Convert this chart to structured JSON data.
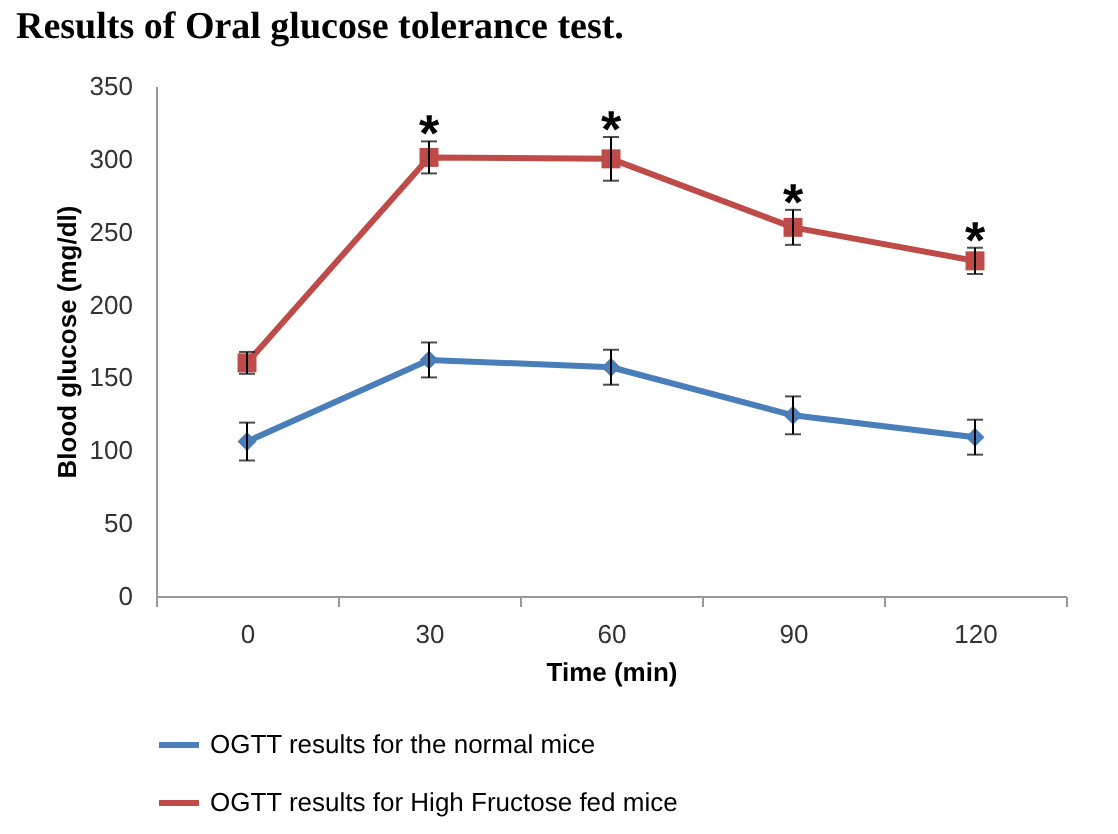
{
  "chart_data": {
    "type": "line",
    "title": "Results of Oral glucose tolerance test.",
    "xlabel": "Time (min)",
    "ylabel": "Blood glucose (mg/dl)",
    "categories": [
      "0",
      "30",
      "60",
      "90",
      "120"
    ],
    "series": [
      {
        "name": "OGTT results for the normal mice",
        "color": "#4a7ebb",
        "marker": "diamond",
        "values": [
          106,
          162,
          157,
          124,
          109
        ],
        "errors": [
          13,
          12,
          12,
          13,
          12
        ]
      },
      {
        "name": "OGTT results for High Fructose fed mice",
        "color": "#be4b48",
        "marker": "square",
        "values": [
          160,
          301,
          300,
          253,
          230
        ],
        "errors": [
          7.5,
          11,
          15,
          12,
          9
        ]
      }
    ],
    "annotations": [
      {
        "text": "*",
        "x": "30",
        "y": 301
      },
      {
        "text": "*",
        "x": "60",
        "y": 300
      },
      {
        "text": "*",
        "x": "90",
        "y": 253
      },
      {
        "text": "*",
        "x": "120",
        "y": 230
      }
    ],
    "ylim": [
      0,
      350
    ],
    "yticks": [
      0,
      50,
      100,
      150,
      200,
      250,
      300,
      350
    ],
    "grid": false,
    "legend": "bottom",
    "line_style": "solid"
  }
}
